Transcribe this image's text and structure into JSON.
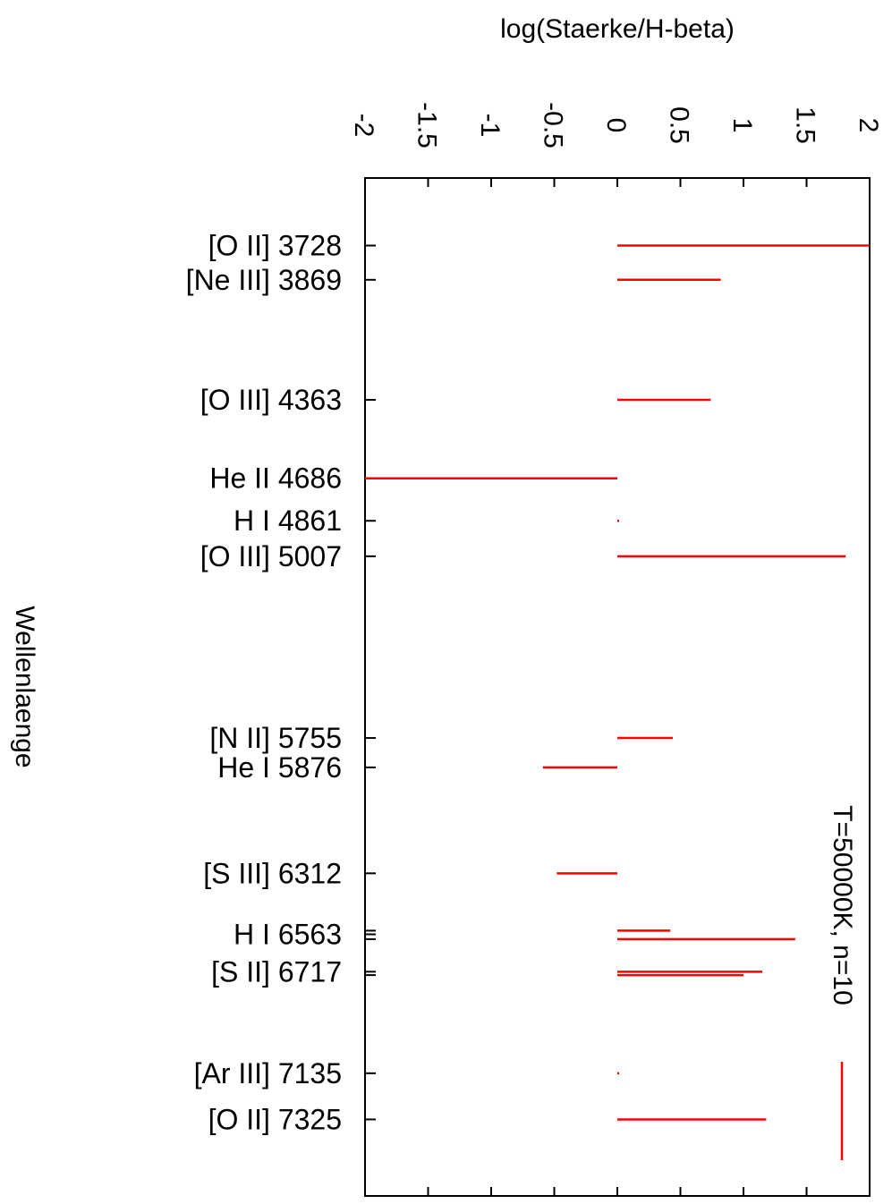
{
  "chart_data": {
    "type": "bar",
    "orientation": "horizontal",
    "xlabel": "log(Staerke/H-beta)",
    "ylabel": "Wellenlaenge",
    "xlim": [
      -2,
      2
    ],
    "xticks": [
      "-2",
      "-1.5",
      "-1",
      "-0.5",
      "0",
      "0.5",
      "1",
      "1.5",
      "2"
    ],
    "ylim": [
      3450,
      7640
    ],
    "grid": false,
    "bar_color": "#ff0000",
    "legend": {
      "label": "T=50000K, n=10",
      "position": "right"
    },
    "labeled_lines": [
      {
        "label": "[O II] 3728",
        "wavelength": 3728
      },
      {
        "label": "[Ne III] 3869",
        "wavelength": 3869
      },
      {
        "label": "[O III] 4363",
        "wavelength": 4363
      },
      {
        "label": "He II 4686",
        "wavelength": 4686
      },
      {
        "label": "H I 4861",
        "wavelength": 4861
      },
      {
        "label": "[O III] 5007",
        "wavelength": 5007
      },
      {
        "label": "[N II] 5755",
        "wavelength": 5755
      },
      {
        "label": "He I 5876",
        "wavelength": 5876
      },
      {
        "label": "[S III] 6312",
        "wavelength": 6312
      },
      {
        "label": "H I 6563",
        "wavelength": 6563
      },
      {
        "label": "[S II] 6717",
        "wavelength": 6717
      },
      {
        "label": "[Ar III] 7135",
        "wavelength": 7135
      },
      {
        "label": "[O II] 7325",
        "wavelength": 7325
      }
    ],
    "unlabeled_ticks": [
      6548,
      6583,
      6731
    ],
    "series": [
      {
        "name": "T=50000K, n=10",
        "points": [
          {
            "wavelength": 3728,
            "value": 2.0
          },
          {
            "wavelength": 3869,
            "value": 0.82
          },
          {
            "wavelength": 4363,
            "value": 0.74
          },
          {
            "wavelength": 4686,
            "value": -2.0
          },
          {
            "wavelength": 4861,
            "value": 0.0
          },
          {
            "wavelength": 5007,
            "value": 1.81
          },
          {
            "wavelength": 5755,
            "value": 0.44
          },
          {
            "wavelength": 5876,
            "value": -0.59
          },
          {
            "wavelength": 6312,
            "value": -0.48
          },
          {
            "wavelength": 6548,
            "value": 0.42
          },
          {
            "wavelength": 6583,
            "value": 1.41
          },
          {
            "wavelength": 6717,
            "value": 1.15
          },
          {
            "wavelength": 6731,
            "value": 1.0
          },
          {
            "wavelength": 7135,
            "value": 0.0
          },
          {
            "wavelength": 7325,
            "value": 1.18
          }
        ]
      }
    ]
  }
}
